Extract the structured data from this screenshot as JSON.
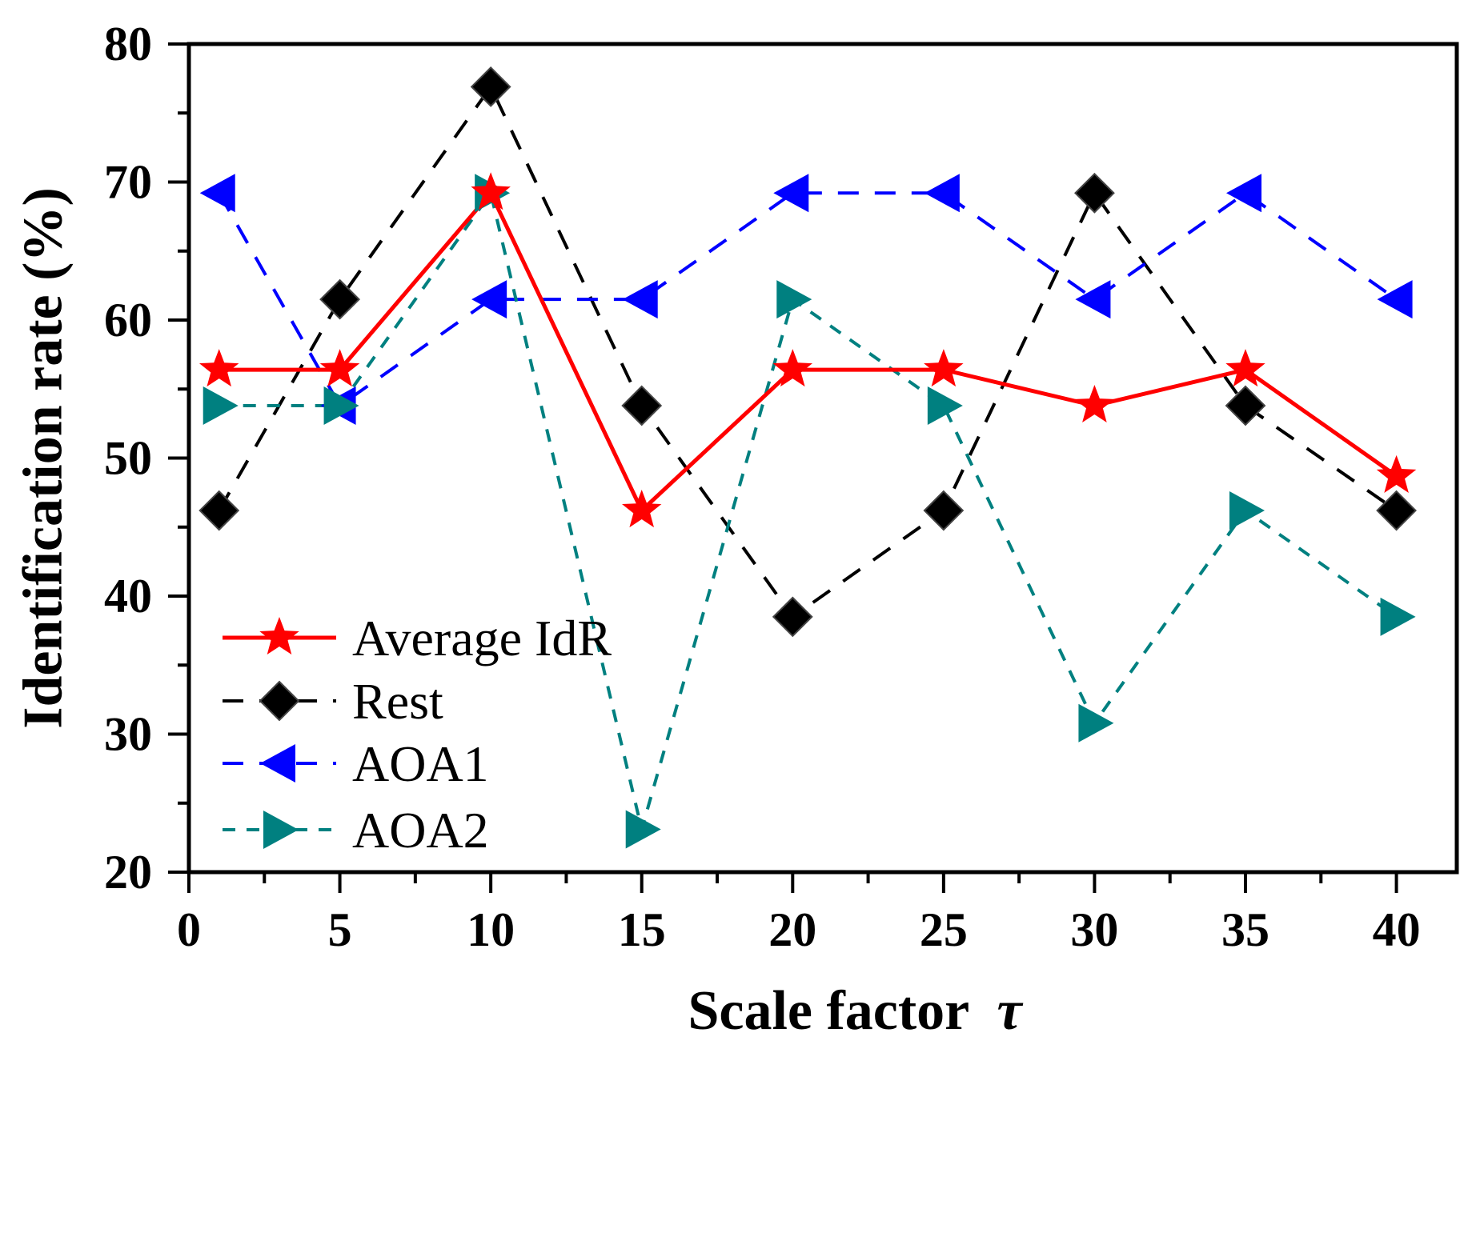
{
  "chart_data": {
    "type": "line",
    "xlabel": "Scale factor",
    "xlabel_symbol": "τ",
    "ylabel": "Identification rate  (%)",
    "xlim": [
      0,
      42
    ],
    "ylim": [
      20,
      80
    ],
    "xticks": [
      0,
      5,
      10,
      15,
      20,
      25,
      30,
      35,
      40
    ],
    "yticks": [
      20,
      30,
      40,
      50,
      60,
      70,
      80
    ],
    "x": [
      1,
      5,
      10,
      15,
      20,
      25,
      30,
      35,
      40
    ],
    "legend_position": "bottom-left",
    "series": [
      {
        "name": "Average IdR",
        "color": "#ff0000",
        "dash": "solid",
        "marker": "star",
        "values": [
          56.4,
          56.4,
          69.2,
          46.2,
          56.4,
          56.4,
          53.8,
          56.4,
          48.7
        ]
      },
      {
        "name": "Rest",
        "color": "#000000",
        "dash": "dashed",
        "marker": "diamond",
        "values": [
          46.2,
          61.5,
          76.9,
          53.8,
          38.5,
          46.2,
          69.2,
          53.8,
          46.2
        ]
      },
      {
        "name": "AOA1",
        "color": "#0000ff",
        "dash": "dashed",
        "marker": "triangle-left",
        "values": [
          69.2,
          53.8,
          61.5,
          61.5,
          69.2,
          69.2,
          61.5,
          69.2,
          61.5
        ]
      },
      {
        "name": "AOA2",
        "color": "#008080",
        "dash": "dashed",
        "marker": "triangle-right",
        "values": [
          53.8,
          53.8,
          69.2,
          23.1,
          61.5,
          53.8,
          30.8,
          46.2,
          38.5
        ]
      }
    ]
  }
}
